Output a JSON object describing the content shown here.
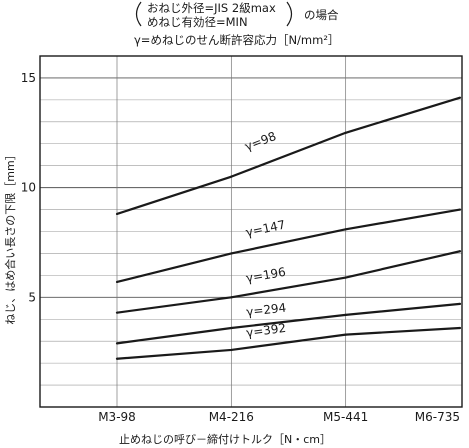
{
  "chart_data": {
    "type": "line",
    "caption": {
      "cond1": "おねじ外径=JIS 2級max",
      "cond2": "めねじ有効径=MIN",
      "cond_suffix": "の場合",
      "line3": "γ=めねじのせん断許容応力［N/mm²］"
    },
    "xlabel": "止めねじの呼び－締付けトルク［N・cm］",
    "ylabel": "ねじ、はめ合い長さの下限［mm］",
    "categories": [
      "M3-98",
      "M4-216",
      "M5-441",
      "M6-735"
    ],
    "ylim": [
      0,
      16
    ],
    "yticks": [
      5,
      10,
      15
    ],
    "grid": true,
    "series": [
      {
        "name": "γ=98",
        "values": [
          8.8,
          10.5,
          12.5,
          14.1
        ]
      },
      {
        "name": "γ=147",
        "values": [
          5.7,
          7.0,
          8.1,
          9.0
        ]
      },
      {
        "name": "γ=196",
        "values": [
          4.3,
          5.0,
          5.9,
          7.1
        ]
      },
      {
        "name": "γ=294",
        "values": [
          2.9,
          3.6,
          4.2,
          4.7
        ]
      },
      {
        "name": "γ=392",
        "values": [
          2.2,
          2.6,
          3.3,
          3.6
        ]
      }
    ]
  }
}
